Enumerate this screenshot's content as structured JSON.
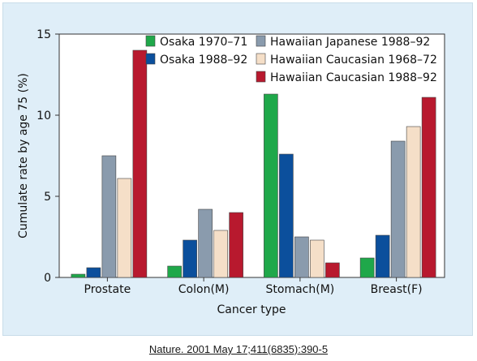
{
  "citation": "Nature. 2001 May 17;411(6835):390-5",
  "chart_data": {
    "type": "bar",
    "xlabel": "Cancer type",
    "ylabel": "Cumulate rate by age 75 (%)",
    "ylim": [
      0,
      15
    ],
    "yticks": [
      0,
      5,
      10,
      15
    ],
    "grid": false,
    "legend_position": "top-right",
    "categories": [
      "Prostate",
      "Colon(M)",
      "Stomach(M)",
      "Breast(F)"
    ],
    "series": [
      {
        "name": "Osaka 1970–71",
        "color": "#1fa84a",
        "values": [
          0.2,
          0.7,
          11.3,
          1.2
        ]
      },
      {
        "name": "Osaka 1988–92",
        "color": "#0b4f9c",
        "values": [
          0.6,
          2.3,
          7.6,
          2.6
        ]
      },
      {
        "name": "Hawaiian Japanese 1988–92",
        "color": "#8a9bad",
        "values": [
          7.5,
          4.2,
          2.5,
          8.4
        ]
      },
      {
        "name": "Hawaiian Caucasian 1968–72",
        "color": "#f5dfc8",
        "values": [
          6.1,
          2.9,
          2.3,
          9.3
        ]
      },
      {
        "name": "Hawaiian Caucasian 1988–92",
        "color": "#b8192e",
        "values": [
          14.0,
          4.0,
          0.9,
          11.1
        ]
      }
    ]
  }
}
